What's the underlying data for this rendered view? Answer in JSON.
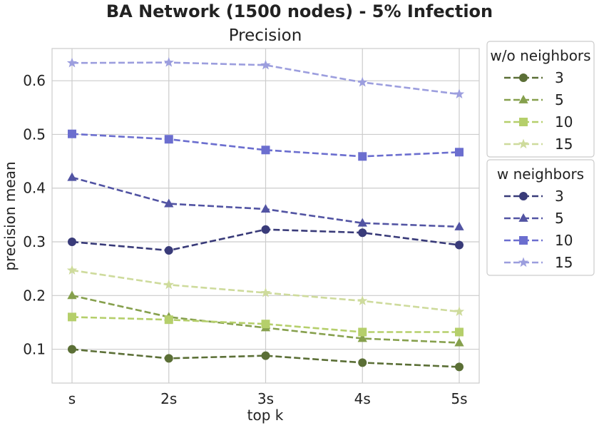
{
  "chart_data": {
    "type": "line",
    "title": "BA Network (1500 nodes) - 5% Infection",
    "subtitle": "Precision",
    "xlabel": "top k",
    "ylabel": "precision mean",
    "categories": [
      "s",
      "2s",
      "3s",
      "4s",
      "5s"
    ],
    "ylim": [
      0.037,
      0.66
    ],
    "yticks": [
      0.1,
      0.2,
      0.3,
      0.4,
      0.5,
      0.6
    ],
    "ytick_labels": [
      "0.1",
      "0.2",
      "0.3",
      "0.4",
      "0.5",
      "0.6"
    ],
    "grid": true,
    "legend_placement": "outside-right",
    "groups": [
      {
        "title": "w/o neighbors",
        "series": [
          {
            "name": "3",
            "marker": "circle",
            "color": "#5b6f36",
            "values": [
              0.1,
              0.083,
              0.088,
              0.075,
              0.067
            ]
          },
          {
            "name": "5",
            "marker": "triangle",
            "color": "#86a04d",
            "values": [
              0.2,
              0.16,
              0.14,
              0.12,
              0.112
            ]
          },
          {
            "name": "10",
            "marker": "square",
            "color": "#b5cf6b",
            "values": [
              0.16,
              0.155,
              0.147,
              0.132,
              0.132
            ]
          },
          {
            "name": "15",
            "marker": "star",
            "color": "#cedb9c",
            "values": [
              0.247,
              0.22,
              0.205,
              0.19,
              0.17
            ]
          }
        ]
      },
      {
        "title": "w neighbors",
        "series": [
          {
            "name": "3",
            "marker": "circle",
            "color": "#393b79",
            "values": [
              0.3,
              0.284,
              0.323,
              0.317,
              0.294
            ]
          },
          {
            "name": "5",
            "marker": "triangle",
            "color": "#5254a3",
            "values": [
              0.42,
              0.371,
              0.361,
              0.335,
              0.328
            ]
          },
          {
            "name": "10",
            "marker": "square",
            "color": "#6b6ecf",
            "values": [
              0.501,
              0.491,
              0.471,
              0.459,
              0.467
            ]
          },
          {
            "name": "15",
            "marker": "star",
            "color": "#9c9ede",
            "values": [
              0.633,
              0.634,
              0.629,
              0.597,
              0.575
            ]
          }
        ]
      }
    ]
  }
}
